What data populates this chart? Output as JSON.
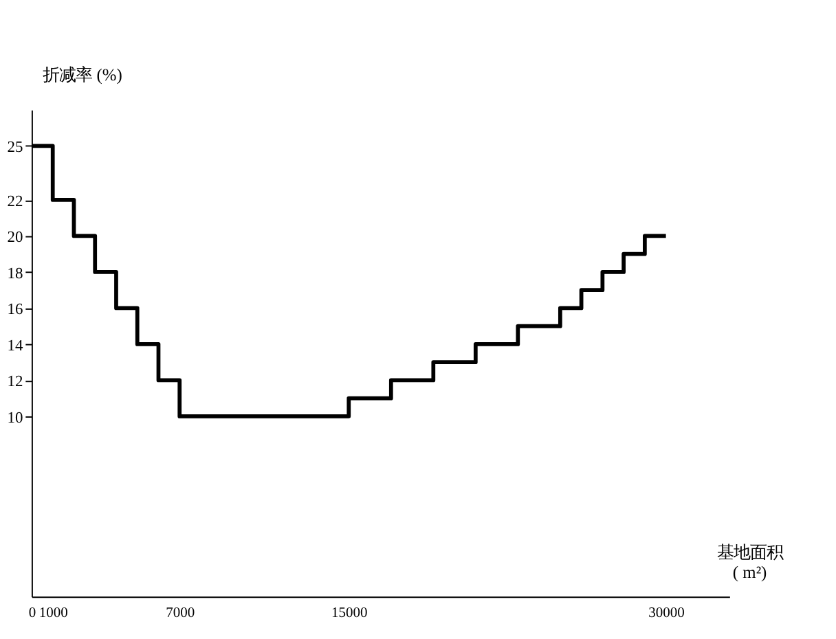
{
  "chart_data": {
    "type": "step",
    "xlabel": "基地面积 ( m²)",
    "ylabel": "折减率 (%)",
    "x": [
      0,
      1000,
      2000,
      3000,
      4000,
      5000,
      6000,
      7000,
      15000,
      17000,
      19000,
      21000,
      23000,
      25000,
      26000,
      27000,
      28000,
      29000,
      30000
    ],
    "series": [
      {
        "color": "#000000",
        "values": [
          25,
          22,
          20,
          18,
          16,
          14,
          12,
          10,
          11,
          12,
          13,
          14,
          15,
          16,
          17,
          18,
          19,
          20,
          20
        ]
      }
    ],
    "xlim": [
      0,
      33000
    ],
    "xticks": [
      0,
      1000,
      7000,
      15000,
      30000
    ],
    "ylim": [
      0,
      27
    ],
    "yticks": [
      10,
      12,
      14,
      16,
      18,
      20,
      22,
      25
    ],
    "grid": false,
    "legend": false,
    "line_style": "solid"
  }
}
